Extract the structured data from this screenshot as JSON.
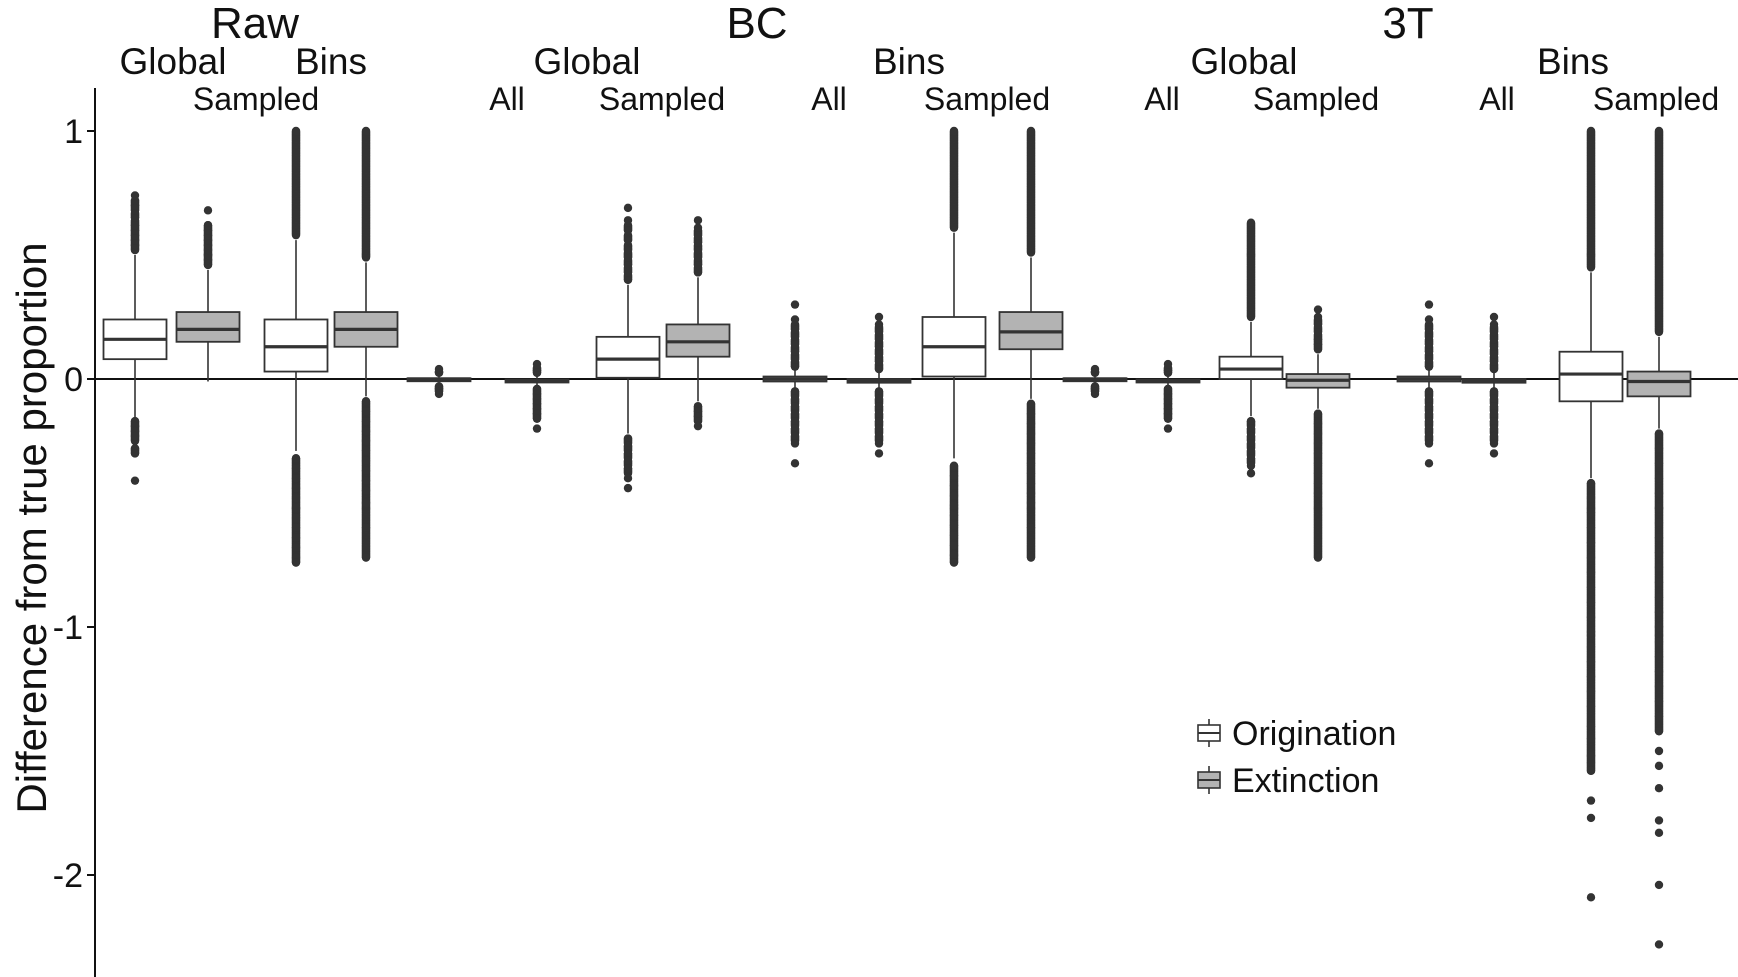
{
  "chart_data": {
    "type": "boxplot",
    "title": "",
    "ylabel": "Difference from true proportion",
    "xlabel": "",
    "ylim": [
      -2.45,
      1.2
    ],
    "yticks": [
      1,
      0,
      -1,
      -2
    ],
    "ytick_labels": [
      "1",
      "0",
      "-1",
      "-2"
    ],
    "grid": false,
    "reference_line_y": 0,
    "group_headers": [
      {
        "id": "raw",
        "label": "Raw"
      },
      {
        "id": "bc",
        "label": "BC"
      },
      {
        "id": "3t",
        "label": "3T"
      }
    ],
    "subgroup_headers": [
      {
        "group": "raw",
        "label": "Global"
      },
      {
        "group": "raw",
        "label": "Bins"
      },
      {
        "group": "bc",
        "label": "Global"
      },
      {
        "group": "bc",
        "label": "Bins"
      },
      {
        "group": "3t",
        "label": "Global"
      },
      {
        "group": "3t",
        "label": "Bins"
      }
    ],
    "category_headers": [
      {
        "group": "raw",
        "label": "Sampled"
      },
      {
        "group": "bc",
        "label": "All"
      },
      {
        "group": "bc",
        "label": "Sampled"
      },
      {
        "group": "bc",
        "label": "All"
      },
      {
        "group": "bc",
        "label": "Sampled"
      },
      {
        "group": "3t",
        "label": "All"
      },
      {
        "group": "3t",
        "label": "Sampled"
      },
      {
        "group": "3t",
        "label": "All"
      },
      {
        "group": "3t",
        "label": "Sampled"
      }
    ],
    "legend": {
      "placement": "bottom-right",
      "entries": [
        {
          "label": "Origination",
          "fill": "#ffffff"
        },
        {
          "label": "Extinction",
          "fill": "#b3b3b3"
        }
      ]
    },
    "series": [
      {
        "name": "Origination",
        "fill": "#ffffff",
        "stroke": "#333333"
      },
      {
        "name": "Extinction",
        "fill": "#b3b3b3",
        "stroke": "#333333"
      }
    ],
    "boxes": [
      {
        "group": "Raw",
        "sub": "Global Sampled",
        "series": "Origination",
        "q1": 0.08,
        "median": 0.16,
        "q3": 0.24,
        "whisker_low": -0.16,
        "whisker_high": 0.5,
        "outliers_low": [
          -0.17,
          -0.19,
          -0.21,
          -0.23,
          -0.28,
          -0.3,
          -0.41
        ],
        "outliers_high": [
          0.52,
          0.54,
          0.56,
          0.58,
          0.6,
          0.62,
          0.65,
          0.68,
          0.7,
          0.72,
          0.74
        ]
      },
      {
        "group": "Raw",
        "sub": "Global Sampled",
        "series": "Extinction",
        "q1": 0.15,
        "median": 0.2,
        "q3": 0.27,
        "whisker_low": -0.01,
        "whisker_high": 0.44,
        "outliers_low": [],
        "outliers_high": [
          0.46,
          0.48,
          0.5,
          0.52,
          0.54,
          0.56,
          0.58,
          0.6,
          0.62,
          0.68
        ]
      },
      {
        "group": "Raw",
        "sub": "Bins Sampled",
        "series": "Origination",
        "q1": 0.03,
        "median": 0.13,
        "q3": 0.24,
        "whisker_low": -0.29,
        "whisker_high": 0.56,
        "outliers_low": [
          -0.32,
          -0.36,
          -0.4,
          -0.44,
          -0.48,
          -0.52,
          -0.56,
          -0.6,
          -0.64,
          -0.68,
          -0.72,
          -0.74
        ],
        "outliers_high": [
          0.58,
          0.62,
          0.66,
          0.7,
          0.74,
          0.78,
          0.82,
          0.86,
          0.9,
          0.94,
          0.97,
          1.0
        ]
      },
      {
        "group": "Raw",
        "sub": "Bins Sampled",
        "series": "Extinction",
        "q1": 0.13,
        "median": 0.2,
        "q3": 0.27,
        "whisker_low": -0.07,
        "whisker_high": 0.47,
        "outliers_low": [
          -0.09,
          -0.13,
          -0.17,
          -0.21,
          -0.25,
          -0.29,
          -0.33,
          -0.37,
          -0.41,
          -0.45,
          -0.5,
          -0.6,
          -0.72
        ],
        "outliers_high": [
          0.49,
          0.53,
          0.57,
          0.61,
          0.65,
          0.69,
          0.73,
          0.77,
          0.81,
          0.85,
          0.89,
          0.93,
          0.97,
          1.0
        ]
      },
      {
        "group": "BC",
        "sub": "Global All",
        "series": "Origination",
        "q1": -0.005,
        "median": 0.0,
        "q3": 0.003,
        "whisker_low": -0.02,
        "whisker_high": 0.02,
        "outliers_low": [
          -0.03,
          -0.04,
          -0.05,
          -0.06
        ],
        "outliers_high": [
          0.025,
          0.03,
          0.04
        ]
      },
      {
        "group": "BC",
        "sub": "Global All",
        "series": "Extinction",
        "q1": -0.012,
        "median": -0.006,
        "q3": -0.002,
        "whisker_low": -0.03,
        "whisker_high": 0.02,
        "outliers_low": [
          -0.04,
          -0.06,
          -0.08,
          -0.1,
          -0.12,
          -0.14,
          -0.16,
          -0.2
        ],
        "outliers_high": [
          0.025,
          0.035,
          0.045,
          0.06
        ]
      },
      {
        "group": "BC",
        "sub": "Global Sampled",
        "series": "Origination",
        "q1": 0.005,
        "median": 0.08,
        "q3": 0.17,
        "whisker_low": -0.22,
        "whisker_high": 0.38,
        "outliers_low": [
          -0.24,
          -0.27,
          -0.3,
          -0.33,
          -0.36,
          -0.4,
          -0.44
        ],
        "outliers_high": [
          0.4,
          0.43,
          0.46,
          0.49,
          0.52,
          0.56,
          0.6,
          0.64,
          0.69
        ]
      },
      {
        "group": "BC",
        "sub": "Global Sampled",
        "series": "Extinction",
        "q1": 0.09,
        "median": 0.15,
        "q3": 0.22,
        "whisker_low": -0.09,
        "whisker_high": 0.41,
        "outliers_low": [
          -0.11,
          -0.13,
          -0.15,
          -0.17,
          -0.19
        ],
        "outliers_high": [
          0.43,
          0.46,
          0.49,
          0.52,
          0.55,
          0.58,
          0.61,
          0.64
        ]
      },
      {
        "group": "BC",
        "sub": "Bins All",
        "series": "Origination",
        "q1": -0.01,
        "median": 0.0,
        "q3": 0.01,
        "whisker_low": -0.04,
        "whisker_high": 0.04,
        "outliers_low": [
          -0.05,
          -0.08,
          -0.11,
          -0.14,
          -0.17,
          -0.2,
          -0.23,
          -0.26,
          -0.34
        ],
        "outliers_high": [
          0.05,
          0.08,
          0.11,
          0.14,
          0.17,
          0.2,
          0.24,
          0.3
        ]
      },
      {
        "group": "BC",
        "sub": "Bins All",
        "series": "Extinction",
        "q1": -0.015,
        "median": -0.006,
        "q3": 0.0,
        "whisker_low": -0.04,
        "whisker_high": 0.03,
        "outliers_low": [
          -0.05,
          -0.08,
          -0.11,
          -0.14,
          -0.17,
          -0.2,
          -0.23,
          -0.26,
          -0.3
        ],
        "outliers_high": [
          0.04,
          0.07,
          0.1,
          0.13,
          0.16,
          0.19,
          0.22,
          0.25
        ]
      },
      {
        "group": "BC",
        "sub": "Bins Sampled",
        "series": "Origination",
        "q1": 0.01,
        "median": 0.13,
        "q3": 0.25,
        "whisker_low": -0.32,
        "whisker_high": 0.59,
        "outliers_low": [
          -0.35,
          -0.39,
          -0.43,
          -0.47,
          -0.51,
          -0.55,
          -0.59,
          -0.63,
          -0.67,
          -0.71,
          -0.74
        ],
        "outliers_high": [
          0.61,
          0.65,
          0.69,
          0.73,
          0.77,
          0.81,
          0.85,
          0.89,
          0.93,
          0.97,
          1.0
        ]
      },
      {
        "group": "BC",
        "sub": "Bins Sampled",
        "series": "Extinction",
        "q1": 0.12,
        "median": 0.19,
        "q3": 0.27,
        "whisker_low": -0.08,
        "whisker_high": 0.49,
        "outliers_low": [
          -0.1,
          -0.14,
          -0.18,
          -0.22,
          -0.26,
          -0.3,
          -0.34,
          -0.38,
          -0.42,
          -0.46,
          -0.5,
          -0.6,
          -0.72
        ],
        "outliers_high": [
          0.51,
          0.55,
          0.59,
          0.63,
          0.67,
          0.71,
          0.75,
          0.79,
          0.83,
          0.87,
          0.91,
          0.95,
          1.0
        ]
      },
      {
        "group": "3T",
        "sub": "Global All",
        "series": "Origination",
        "q1": -0.005,
        "median": 0.0,
        "q3": 0.003,
        "whisker_low": -0.02,
        "whisker_high": 0.02,
        "outliers_low": [
          -0.03,
          -0.04,
          -0.05,
          -0.06
        ],
        "outliers_high": [
          0.025,
          0.03,
          0.04
        ]
      },
      {
        "group": "3T",
        "sub": "Global All",
        "series": "Extinction",
        "q1": -0.012,
        "median": -0.006,
        "q3": -0.002,
        "whisker_low": -0.03,
        "whisker_high": 0.02,
        "outliers_low": [
          -0.04,
          -0.06,
          -0.08,
          -0.1,
          -0.12,
          -0.14,
          -0.16,
          -0.2
        ],
        "outliers_high": [
          0.025,
          0.035,
          0.045,
          0.06
        ]
      },
      {
        "group": "3T",
        "sub": "Global Sampled",
        "series": "Origination",
        "q1": 0.0,
        "median": 0.04,
        "q3": 0.09,
        "whisker_low": -0.15,
        "whisker_high": 0.23,
        "outliers_low": [
          -0.17,
          -0.2,
          -0.23,
          -0.26,
          -0.29,
          -0.32,
          -0.35,
          -0.38
        ],
        "outliers_high": [
          0.25,
          0.28,
          0.31,
          0.34,
          0.37,
          0.4,
          0.43,
          0.46,
          0.49,
          0.53,
          0.63
        ]
      },
      {
        "group": "3T",
        "sub": "Global Sampled",
        "series": "Extinction",
        "q1": -0.035,
        "median": -0.005,
        "q3": 0.02,
        "whisker_low": -0.12,
        "whisker_high": 0.1,
        "outliers_low": [
          -0.14,
          -0.18,
          -0.22,
          -0.26,
          -0.3,
          -0.34,
          -0.38,
          -0.42,
          -0.46,
          -0.72
        ],
        "outliers_high": [
          0.12,
          0.14,
          0.16,
          0.19,
          0.22,
          0.25,
          0.28
        ]
      },
      {
        "group": "3T",
        "sub": "Bins All",
        "series": "Origination",
        "q1": -0.01,
        "median": 0.0,
        "q3": 0.01,
        "whisker_low": -0.04,
        "whisker_high": 0.04,
        "outliers_low": [
          -0.05,
          -0.08,
          -0.11,
          -0.14,
          -0.17,
          -0.2,
          -0.23,
          -0.26,
          -0.34
        ],
        "outliers_high": [
          0.05,
          0.08,
          0.11,
          0.14,
          0.17,
          0.2,
          0.24,
          0.3
        ]
      },
      {
        "group": "3T",
        "sub": "Bins All",
        "series": "Extinction",
        "q1": -0.015,
        "median": -0.006,
        "q3": 0.0,
        "whisker_low": -0.04,
        "whisker_high": 0.03,
        "outliers_low": [
          -0.05,
          -0.08,
          -0.11,
          -0.14,
          -0.17,
          -0.2,
          -0.23,
          -0.26,
          -0.3
        ],
        "outliers_high": [
          0.04,
          0.07,
          0.1,
          0.13,
          0.16,
          0.19,
          0.22,
          0.25
        ]
      },
      {
        "group": "3T",
        "sub": "Bins Sampled",
        "series": "Origination",
        "q1": -0.09,
        "median": 0.02,
        "q3": 0.11,
        "whisker_low": -0.4,
        "whisker_high": 0.43,
        "outliers_low": [
          -0.42,
          -0.48,
          -0.54,
          -0.6,
          -0.66,
          -0.72,
          -0.78,
          -0.84,
          -0.9,
          -0.96,
          -1.02,
          -1.08,
          -1.14,
          -1.2,
          -1.26,
          -1.32,
          -1.4,
          -1.45,
          -1.52,
          -1.58,
          -1.7,
          -1.77,
          -2.09
        ],
        "outliers_high": [
          0.45,
          0.5,
          0.55,
          0.6,
          0.65,
          0.7,
          0.75,
          0.8,
          0.85,
          0.9,
          0.95,
          1.0
        ]
      },
      {
        "group": "3T",
        "sub": "Bins Sampled",
        "series": "Extinction",
        "q1": -0.07,
        "median": -0.01,
        "q3": 0.03,
        "whisker_low": -0.2,
        "whisker_high": 0.17,
        "outliers_low": [
          -0.22,
          -0.28,
          -0.34,
          -0.4,
          -0.46,
          -0.52,
          -0.58,
          -0.64,
          -0.7,
          -0.76,
          -0.82,
          -0.88,
          -0.94,
          -1.0,
          -1.06,
          -1.12,
          -1.18,
          -1.24,
          -1.3,
          -1.36,
          -1.42,
          -1.5,
          -1.56,
          -1.65,
          -1.78,
          -1.83,
          -2.04,
          -2.28
        ],
        "outliers_high": [
          0.19,
          0.25,
          0.31,
          0.37,
          0.43,
          0.49,
          0.55,
          0.61,
          0.67,
          0.73,
          0.79,
          0.85,
          0.91,
          0.97,
          1.0
        ]
      }
    ]
  }
}
